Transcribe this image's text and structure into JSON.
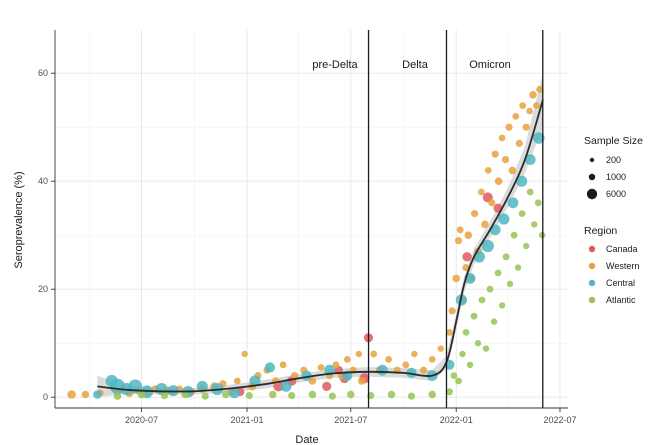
{
  "chart_data": {
    "type": "scatter",
    "xlabel": "Date",
    "ylabel": "Seroprevalence (%)",
    "x_axis_type": "date",
    "xlim": [
      "2020-02-01",
      "2022-07-15"
    ],
    "ylim": [
      -2,
      68
    ],
    "x_ticks": [
      "2020-07",
      "2021-01",
      "2021-07",
      "2022-01",
      "2022-07"
    ],
    "y_ticks": [
      0,
      20,
      40,
      60
    ],
    "grid": true,
    "eras": [
      {
        "label": "pre-Delta",
        "start": "2020-01-01",
        "end": "2021-08-01"
      },
      {
        "label": "Delta",
        "start": "2021-08-01",
        "end": "2021-12-15"
      },
      {
        "label": "Omicron",
        "start": "2021-12-15",
        "end": "2022-06-01"
      }
    ],
    "era_boundaries": [
      "2021-08-01",
      "2021-12-15",
      "2022-06-01"
    ],
    "size_legend": {
      "title": "Sample Size",
      "entries": [
        {
          "label": "200",
          "value": 200
        },
        {
          "label": "1000",
          "value": 1000
        },
        {
          "label": "6000",
          "value": 6000
        }
      ]
    },
    "legend_placement": "right",
    "series": [
      {
        "name": "Canada",
        "color": "#e05a5f",
        "points": [
          [
            "2020-12-20",
            1,
            900
          ],
          [
            "2021-02-25",
            2,
            1500
          ],
          [
            "2021-03-20",
            3,
            1200
          ],
          [
            "2021-05-20",
            2,
            1100
          ],
          [
            "2021-06-20",
            3.5,
            1300
          ],
          [
            "2021-07-25",
            3.5,
            1500
          ],
          [
            "2021-08-01",
            11,
            1100
          ],
          [
            "2021-06-10",
            5,
            900
          ],
          [
            "2022-01-20",
            26,
            1200
          ],
          [
            "2022-02-25",
            37,
            1400
          ],
          [
            "2022-03-15",
            35,
            1100
          ]
        ]
      },
      {
        "name": "Western",
        "color": "#e8a33d",
        "points": [
          [
            "2020-03-01",
            0.5,
            900
          ],
          [
            "2020-03-25",
            0.5,
            600
          ],
          [
            "2020-04-20",
            0.8,
            400
          ],
          [
            "2020-05-20",
            1,
            700
          ],
          [
            "2020-06-10",
            0.8,
            800
          ],
          [
            "2020-06-25",
            1.2,
            500
          ],
          [
            "2020-07-10",
            1,
            900
          ],
          [
            "2020-07-25",
            1.5,
            600
          ],
          [
            "2020-08-15",
            1.2,
            700
          ],
          [
            "2020-09-05",
            1.5,
            500
          ],
          [
            "2020-09-25",
            1,
            800
          ],
          [
            "2020-10-15",
            1.5,
            600
          ],
          [
            "2020-11-05",
            2,
            700
          ],
          [
            "2020-11-20",
            2.5,
            500
          ],
          [
            "2020-12-05",
            1,
            800
          ],
          [
            "2020-12-15",
            3,
            400
          ],
          [
            "2020-12-28",
            8,
            300
          ],
          [
            "2021-01-10",
            2,
            700
          ],
          [
            "2021-01-20",
            4,
            500
          ],
          [
            "2021-02-05",
            5,
            500
          ],
          [
            "2021-02-20",
            3,
            600
          ],
          [
            "2021-03-05",
            6,
            400
          ],
          [
            "2021-03-25",
            4,
            500
          ],
          [
            "2021-04-10",
            5,
            500
          ],
          [
            "2021-04-25",
            3,
            600
          ],
          [
            "2021-05-10",
            5.5,
            400
          ],
          [
            "2021-05-25",
            4,
            500
          ],
          [
            "2021-06-05",
            6,
            400
          ],
          [
            "2021-06-15",
            4,
            600
          ],
          [
            "2021-06-25",
            7,
            400
          ],
          [
            "2021-07-05",
            5,
            500
          ],
          [
            "2021-07-15",
            8,
            300
          ],
          [
            "2021-07-20",
            3,
            600
          ],
          [
            "2021-08-10",
            8,
            400
          ],
          [
            "2021-08-20",
            5,
            500
          ],
          [
            "2021-09-05",
            7,
            400
          ],
          [
            "2021-09-20",
            5,
            500
          ],
          [
            "2021-10-05",
            6,
            400
          ],
          [
            "2021-10-20",
            8,
            300
          ],
          [
            "2021-11-05",
            5,
            500
          ],
          [
            "2021-11-20",
            7,
            400
          ],
          [
            "2021-12-05",
            9,
            300
          ],
          [
            "2021-12-20",
            12,
            400
          ],
          [
            "2021-12-25",
            16,
            500
          ],
          [
            "2022-01-01",
            22,
            600
          ],
          [
            "2022-01-05",
            29,
            500
          ],
          [
            "2022-01-08",
            31,
            400
          ],
          [
            "2022-01-12",
            18,
            600
          ],
          [
            "2022-01-18",
            24,
            500
          ],
          [
            "2022-01-22",
            30,
            600
          ],
          [
            "2022-01-28",
            22,
            500
          ],
          [
            "2022-02-02",
            34,
            500
          ],
          [
            "2022-02-08",
            27,
            600
          ],
          [
            "2022-02-14",
            38,
            400
          ],
          [
            "2022-02-20",
            32,
            600
          ],
          [
            "2022-02-26",
            42,
            400
          ],
          [
            "2022-03-04",
            36,
            500
          ],
          [
            "2022-03-10",
            45,
            500
          ],
          [
            "2022-03-16",
            40,
            600
          ],
          [
            "2022-03-22",
            48,
            400
          ],
          [
            "2022-03-28",
            44,
            500
          ],
          [
            "2022-04-03",
            50,
            500
          ],
          [
            "2022-04-09",
            42,
            600
          ],
          [
            "2022-04-15",
            52,
            400
          ],
          [
            "2022-04-21",
            47,
            500
          ],
          [
            "2022-04-27",
            54,
            400
          ],
          [
            "2022-05-03",
            50,
            500
          ],
          [
            "2022-05-09",
            53,
            400
          ],
          [
            "2022-05-15",
            56,
            600
          ],
          [
            "2022-05-21",
            54,
            400
          ],
          [
            "2022-05-27",
            57,
            500
          ]
        ]
      },
      {
        "name": "Central",
        "color": "#4fb6c2",
        "points": [
          [
            "2020-04-15",
            0.5,
            900
          ],
          [
            "2020-05-10",
            3,
            2500
          ],
          [
            "2020-05-20",
            2,
            4500
          ],
          [
            "2020-06-05",
            1.5,
            2500
          ],
          [
            "2020-06-20",
            2,
            3500
          ],
          [
            "2020-07-10",
            1,
            2800
          ],
          [
            "2020-08-05",
            1.5,
            2500
          ],
          [
            "2020-08-25",
            1.2,
            2000
          ],
          [
            "2020-09-20",
            1,
            2200
          ],
          [
            "2020-10-15",
            2,
            2000
          ],
          [
            "2020-11-10",
            1.5,
            2500
          ],
          [
            "2020-12-10",
            0.8,
            1800
          ],
          [
            "2021-01-15",
            3,
            2000
          ],
          [
            "2021-02-10",
            5.5,
            1500
          ],
          [
            "2021-03-10",
            2,
            1800
          ],
          [
            "2021-04-15",
            4,
            1500
          ],
          [
            "2021-05-25",
            5,
            1800
          ],
          [
            "2021-06-25",
            4,
            1500
          ],
          [
            "2021-08-25",
            5,
            1800
          ],
          [
            "2021-10-15",
            4.5,
            1500
          ],
          [
            "2021-11-20",
            4,
            1800
          ],
          [
            "2021-12-20",
            6,
            1500
          ],
          [
            "2022-01-10",
            18,
            2000
          ],
          [
            "2022-01-25",
            22,
            1800
          ],
          [
            "2022-02-10",
            26,
            2200
          ],
          [
            "2022-02-25",
            28,
            2500
          ],
          [
            "2022-03-10",
            31,
            1800
          ],
          [
            "2022-03-25",
            33,
            2000
          ],
          [
            "2022-04-10",
            36,
            1800
          ],
          [
            "2022-04-25",
            40,
            2000
          ],
          [
            "2022-05-10",
            44,
            1800
          ],
          [
            "2022-05-25",
            48,
            2200
          ]
        ]
      },
      {
        "name": "Atlantic",
        "color": "#97c454",
        "points": [
          [
            "2020-05-20",
            0.2,
            600
          ],
          [
            "2020-07-01",
            0.5,
            700
          ],
          [
            "2020-08-10",
            0.3,
            500
          ],
          [
            "2020-09-15",
            0.5,
            600
          ],
          [
            "2020-10-20",
            0.2,
            500
          ],
          [
            "2020-11-25",
            0.5,
            600
          ],
          [
            "2021-01-05",
            0.3,
            500
          ],
          [
            "2021-02-15",
            0.5,
            600
          ],
          [
            "2021-03-20",
            0.3,
            500
          ],
          [
            "2021-04-25",
            0.5,
            600
          ],
          [
            "2021-05-30",
            0.2,
            500
          ],
          [
            "2021-07-01",
            0.5,
            600
          ],
          [
            "2021-08-05",
            0.3,
            500
          ],
          [
            "2021-09-10",
            0.5,
            600
          ],
          [
            "2021-10-15",
            0.2,
            500
          ],
          [
            "2021-11-20",
            0.5,
            600
          ],
          [
            "2021-12-20",
            1,
            500
          ],
          [
            "2021-12-28",
            4,
            400
          ],
          [
            "2022-01-05",
            3,
            400
          ],
          [
            "2022-01-12",
            8,
            300
          ],
          [
            "2022-01-18",
            12,
            400
          ],
          [
            "2022-01-25",
            6,
            300
          ],
          [
            "2022-02-01",
            15,
            400
          ],
          [
            "2022-02-08",
            10,
            300
          ],
          [
            "2022-02-15",
            18,
            400
          ],
          [
            "2022-02-22",
            9,
            300
          ],
          [
            "2022-03-01",
            20,
            400
          ],
          [
            "2022-03-08",
            14,
            300
          ],
          [
            "2022-03-15",
            23,
            400
          ],
          [
            "2022-03-22",
            17,
            300
          ],
          [
            "2022-03-29",
            26,
            400
          ],
          [
            "2022-04-05",
            21,
            300
          ],
          [
            "2022-04-12",
            30,
            400
          ],
          [
            "2022-04-19",
            24,
            300
          ],
          [
            "2022-04-26",
            34,
            400
          ],
          [
            "2022-05-03",
            28,
            300
          ],
          [
            "2022-05-10",
            38,
            400
          ],
          [
            "2022-05-17",
            32,
            300
          ],
          [
            "2022-05-24",
            36,
            400
          ],
          [
            "2022-05-31",
            30,
            300
          ]
        ]
      }
    ],
    "smooth_fit": {
      "x": [
        "2020-04-15",
        "2020-06-01",
        "2020-08-01",
        "2020-10-01",
        "2020-12-01",
        "2021-02-01",
        "2021-04-01",
        "2021-06-01",
        "2021-08-01",
        "2021-10-01",
        "2021-11-20",
        "2021-12-15",
        "2022-01-01",
        "2022-01-15",
        "2022-02-01",
        "2022-03-01",
        "2022-04-01",
        "2022-05-01",
        "2022-06-01"
      ],
      "y": [
        2.0,
        1.4,
        1.1,
        1.1,
        1.6,
        2.4,
        3.5,
        4.4,
        4.7,
        4.5,
        4.0,
        6.5,
        14.0,
        21.0,
        26.0,
        31.0,
        37.0,
        44.0,
        55.0
      ],
      "ci_halfwidth": [
        2.0,
        0.8,
        0.6,
        0.6,
        0.7,
        0.8,
        0.8,
        0.8,
        0.9,
        0.9,
        1.0,
        1.2,
        1.5,
        1.5,
        1.5,
        1.5,
        1.8,
        2.5,
        5.0
      ]
    }
  },
  "legend": {
    "size_title": "Sample Size",
    "size_labels": [
      "200",
      "1000",
      "6000"
    ],
    "region_title": "Region",
    "regions": [
      {
        "name": "Canada",
        "color": "#e05a5f"
      },
      {
        "name": "Western",
        "color": "#e8a33d"
      },
      {
        "name": "Central",
        "color": "#4fb6c2"
      },
      {
        "name": "Atlantic",
        "color": "#97c454"
      }
    ]
  }
}
